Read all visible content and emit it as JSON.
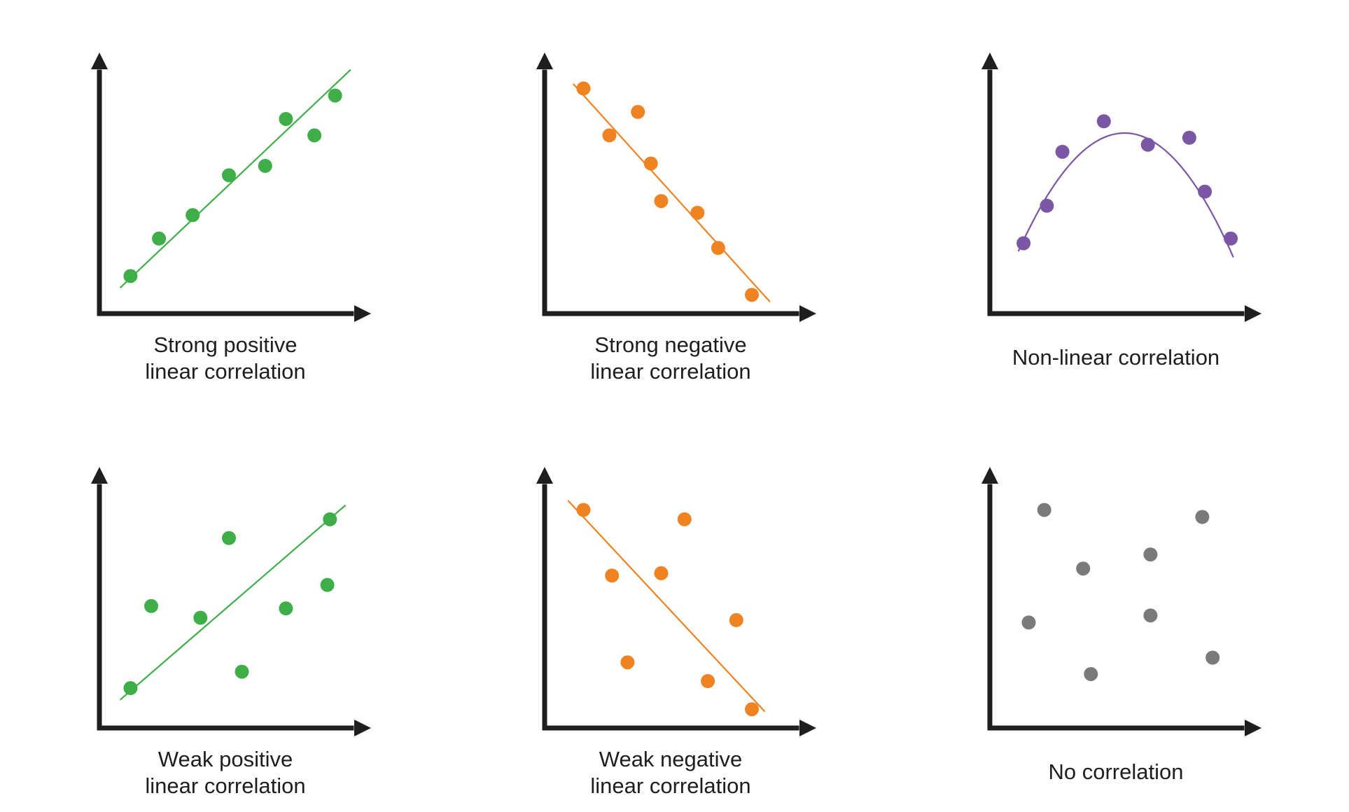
{
  "colors": {
    "axis": "#1e1e1e",
    "green": "#3fae49",
    "orange": "#ef8322",
    "purple": "#7b56a5",
    "gray": "#7a7a7a"
  },
  "chart_data": [
    {
      "type": "scatter",
      "caption_lines": [
        "Strong positive",
        "linear correlation"
      ],
      "color": "green",
      "xlim": [
        0,
        10
      ],
      "ylim": [
        0,
        10
      ],
      "points": [
        [
          1.2,
          1.6
        ],
        [
          2.3,
          3.2
        ],
        [
          3.6,
          4.2
        ],
        [
          5.0,
          5.9
        ],
        [
          6.4,
          6.3
        ],
        [
          7.2,
          8.3
        ],
        [
          8.3,
          7.6
        ],
        [
          9.1,
          9.3
        ]
      ],
      "fit": {
        "kind": "line",
        "from": [
          0.8,
          1.1
        ],
        "to": [
          9.7,
          10.4
        ]
      },
      "grid": false,
      "xlabel": "",
      "ylabel": ""
    },
    {
      "type": "scatter",
      "caption_lines": [
        "Strong negative",
        "linear correlation"
      ],
      "color": "orange",
      "xlim": [
        0,
        10
      ],
      "ylim": [
        0,
        10
      ],
      "points": [
        [
          1.5,
          9.6
        ],
        [
          2.5,
          7.6
        ],
        [
          3.6,
          8.6
        ],
        [
          4.1,
          6.4
        ],
        [
          4.5,
          4.8
        ],
        [
          5.9,
          4.3
        ],
        [
          6.7,
          2.8
        ],
        [
          8.0,
          0.8
        ]
      ],
      "fit": {
        "kind": "line",
        "from": [
          1.1,
          9.8
        ],
        "to": [
          8.7,
          0.5
        ]
      },
      "grid": false,
      "xlabel": "",
      "ylabel": ""
    },
    {
      "type": "scatter",
      "caption_lines": [
        "Non-linear correlation"
      ],
      "color": "purple",
      "xlim": [
        0,
        10
      ],
      "ylim": [
        0,
        10
      ],
      "points": [
        [
          1.3,
          3.0
        ],
        [
          2.2,
          4.6
        ],
        [
          2.8,
          6.9
        ],
        [
          4.4,
          8.2
        ],
        [
          6.1,
          7.2
        ],
        [
          7.7,
          7.5
        ],
        [
          8.3,
          5.2
        ],
        [
          9.3,
          3.2
        ]
      ],
      "fit": {
        "kind": "parabola",
        "x_range": [
          1.1,
          9.4
        ],
        "vertex": [
          5.2,
          7.7
        ],
        "end_y": 2.4
      },
      "grid": false,
      "xlabel": "",
      "ylabel": ""
    },
    {
      "type": "scatter",
      "caption_lines": [
        "Weak positive",
        "linear correlation"
      ],
      "color": "green",
      "xlim": [
        0,
        10
      ],
      "ylim": [
        0,
        10
      ],
      "points": [
        [
          1.2,
          1.7
        ],
        [
          2.0,
          5.2
        ],
        [
          3.9,
          4.7
        ],
        [
          5.0,
          8.1
        ],
        [
          5.5,
          2.4
        ],
        [
          7.2,
          5.1
        ],
        [
          8.8,
          6.1
        ],
        [
          8.9,
          8.9
        ]
      ],
      "fit": {
        "kind": "line",
        "from": [
          0.8,
          1.2
        ],
        "to": [
          9.5,
          9.5
        ]
      },
      "grid": false,
      "xlabel": "",
      "ylabel": ""
    },
    {
      "type": "scatter",
      "caption_lines": [
        "Weak negative",
        "linear correlation"
      ],
      "color": "orange",
      "xlim": [
        0,
        10
      ],
      "ylim": [
        0,
        10
      ],
      "points": [
        [
          1.5,
          9.3
        ],
        [
          2.6,
          6.5
        ],
        [
          3.2,
          2.8
        ],
        [
          4.5,
          6.6
        ],
        [
          5.4,
          8.9
        ],
        [
          6.3,
          2.0
        ],
        [
          7.4,
          4.6
        ],
        [
          8.0,
          0.8
        ]
      ],
      "fit": {
        "kind": "line",
        "from": [
          0.9,
          9.7
        ],
        "to": [
          8.5,
          0.7
        ]
      },
      "grid": false,
      "xlabel": "",
      "ylabel": ""
    },
    {
      "type": "scatter",
      "caption_lines": [
        "No correlation"
      ],
      "color": "gray",
      "xlim": [
        0,
        10
      ],
      "ylim": [
        0,
        10
      ],
      "points": [
        [
          2.1,
          9.3
        ],
        [
          1.5,
          4.5
        ],
        [
          3.6,
          6.8
        ],
        [
          3.9,
          2.3
        ],
        [
          6.2,
          7.4
        ],
        [
          6.2,
          4.8
        ],
        [
          8.2,
          9.0
        ],
        [
          8.6,
          3.0
        ]
      ],
      "fit": null,
      "grid": false,
      "xlabel": "",
      "ylabel": ""
    }
  ]
}
